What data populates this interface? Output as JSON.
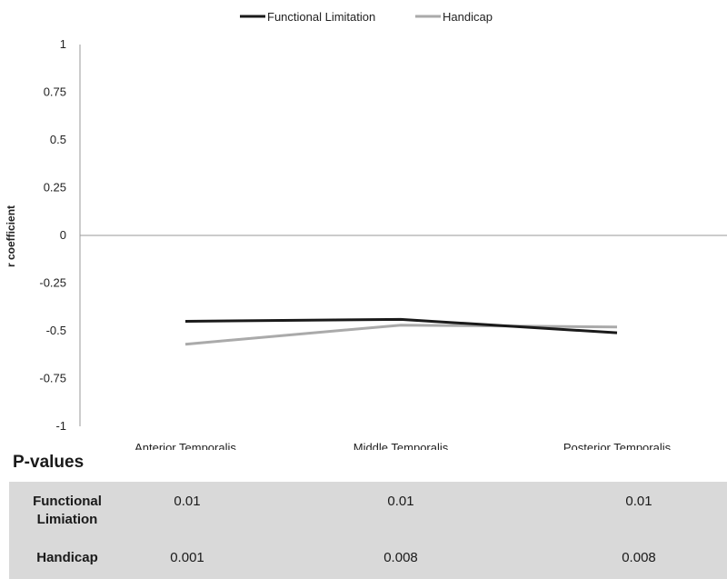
{
  "chart_data": {
    "type": "line",
    "title": "",
    "xlabel": "",
    "ylabel": "r coefficient",
    "ylim": [
      -1,
      1
    ],
    "yticks": [
      "1",
      "0.75",
      "0.5",
      "0.25",
      "0",
      "-0.25",
      "-0.5",
      "-0.75",
      "-1"
    ],
    "categories": [
      "Anterior Temporalis",
      "Middle Temporalis",
      "Posterior Temporalis"
    ],
    "series": [
      {
        "name": "Functional Limitation",
        "color": "#1a1a1a",
        "values": [
          -0.45,
          -0.44,
          -0.51
        ]
      },
      {
        "name": "Handicap",
        "color": "#aaaaaa",
        "values": [
          -0.57,
          -0.47,
          -0.48
        ]
      }
    ],
    "legend_position": "top-center",
    "grid": false
  },
  "pvalues": {
    "heading": "P-values",
    "rows": [
      {
        "label_line1": "Functional",
        "label_line2": "Limiation",
        "values": [
          "0.01",
          "0.01",
          "0.01"
        ]
      },
      {
        "label_line1": "Handicap",
        "label_line2": "",
        "values": [
          "0.001",
          "0.008",
          "0.008"
        ]
      }
    ]
  }
}
